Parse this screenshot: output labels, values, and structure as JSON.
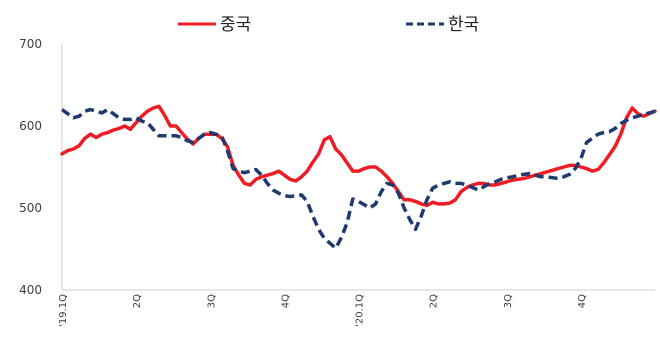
{
  "chart_data": {
    "type": "line",
    "title": "",
    "xlabel": "",
    "ylabel": "",
    "ylim": [
      400,
      700
    ],
    "yticks": [
      400,
      500,
      600,
      700
    ],
    "xticks": [
      {
        "label": "'19.1Q",
        "at": 0
      },
      {
        "label": "2Q",
        "at": 13
      },
      {
        "label": "3Q",
        "at": 26
      },
      {
        "label": "4Q",
        "at": 39
      },
      {
        "label": "'20.1Q",
        "at": 52
      },
      {
        "label": "2Q",
        "at": 65
      },
      {
        "label": "3Q",
        "at": 78
      },
      {
        "label": "4Q",
        "at": 91
      }
    ],
    "x_count": 105,
    "legend_position": "top",
    "series": [
      {
        "name": "중국",
        "color": "#ee1c25",
        "style": "solid",
        "values": [
          566,
          570,
          572,
          576,
          585,
          590,
          586,
          590,
          592,
          595,
          597,
          600,
          596,
          604,
          612,
          618,
          622,
          624,
          613,
          600,
          600,
          592,
          584,
          578,
          585,
          590,
          590,
          590,
          585,
          575,
          552,
          540,
          530,
          528,
          535,
          538,
          540,
          542,
          545,
          540,
          535,
          533,
          538,
          545,
          556,
          566,
          583,
          587,
          572,
          565,
          555,
          545,
          545,
          548,
          550,
          550,
          545,
          538,
          530,
          520,
          510,
          510,
          508,
          505,
          503,
          507,
          505,
          505,
          506,
          510,
          520,
          525,
          528,
          530,
          530,
          528,
          528,
          530,
          532,
          534,
          535,
          536,
          538,
          540,
          542,
          544,
          546,
          548,
          550,
          552,
          552,
          550,
          548,
          545,
          547,
          555,
          565,
          575,
          590,
          610,
          622,
          615,
          612,
          615,
          618
        ]
      },
      {
        "name": "한국",
        "color": "#1f3a6e",
        "style": "dashed",
        "values": [
          620,
          615,
          610,
          612,
          618,
          620,
          618,
          616,
          620,
          615,
          610,
          608,
          608,
          610,
          606,
          604,
          596,
          588,
          588,
          588,
          588,
          586,
          582,
          580,
          585,
          590,
          592,
          590,
          588,
          570,
          548,
          545,
          543,
          545,
          547,
          540,
          530,
          522,
          518,
          515,
          514,
          515,
          516,
          508,
          490,
          474,
          463,
          457,
          451,
          464,
          482,
          511,
          508,
          504,
          500,
          505,
          520,
          530,
          528,
          518,
          500,
          486,
          474,
          490,
          510,
          524,
          528,
          530,
          532,
          530,
          530,
          528,
          525,
          522,
          526,
          530,
          532,
          535,
          537,
          538,
          540,
          541,
          542,
          540,
          538,
          538,
          537,
          536,
          538,
          541,
          548,
          560,
          580,
          585,
          590,
          592,
          593,
          597,
          603,
          607,
          610,
          612,
          614,
          616,
          618
        ]
      }
    ]
  }
}
